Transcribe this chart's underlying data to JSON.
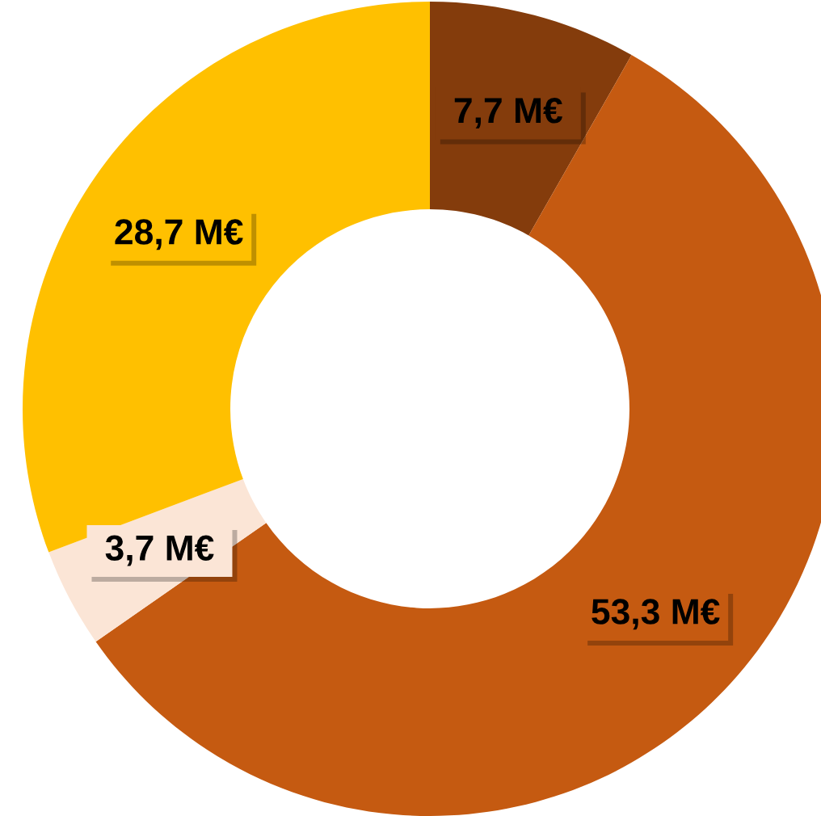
{
  "chart_data": {
    "type": "donut",
    "categories": [
      null,
      null,
      null,
      null
    ],
    "values": [
      7.7,
      53.3,
      3.7,
      28.7
    ],
    "colors": [
      "#843c0c",
      "#c55a11",
      "#fbe5d6",
      "#ffc000"
    ],
    "value_labels": [
      "7,7 M€",
      "53,3 M€",
      "3,7 M€",
      "28,7 M€"
    ]
  }
}
